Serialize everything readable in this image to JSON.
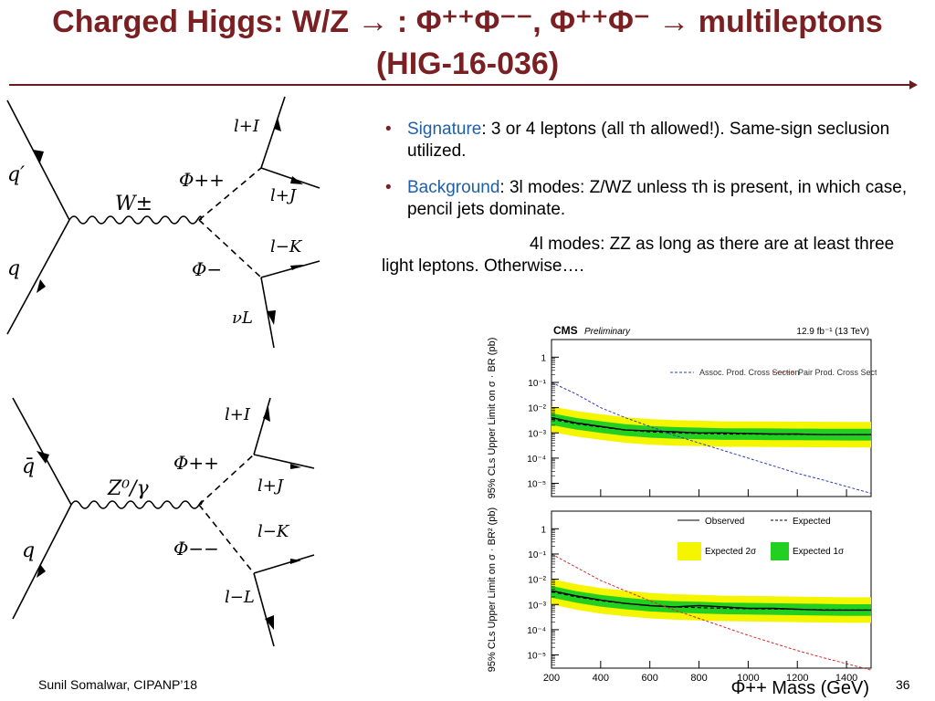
{
  "slide": {
    "title_line1": "Charged Higgs: W/Z → : Φ⁺⁺Φ⁻⁻, Φ⁺⁺Φ⁻ → multileptons",
    "title_line2": "(HIG-16-036)",
    "footer_author": "Sunil Somalwar, CIPANP’18",
    "page_number": "36"
  },
  "diagram1": {
    "in_top": "q′",
    "in_bot": "q",
    "boson": "W±",
    "scalar_top": "Φ++",
    "scalar_bot": "Φ−",
    "out1": "l+I",
    "out2": "l+J",
    "out3": "l−K",
    "out4": "νL"
  },
  "diagram2": {
    "in_top": "q̄",
    "in_bot": "q",
    "boson": "Z⁰/γ",
    "scalar_top": "Φ++",
    "scalar_bot": "Φ−−",
    "out1": "l+I",
    "out2": "l+J",
    "out3": "l−K",
    "out4": "l−L"
  },
  "bullets": {
    "signature_key": "Signature",
    "signature_text": ": 3 or 4 leptons (all τh allowed!). Same-sign seclusion utilized.",
    "background_key": "Background",
    "background_text": ": 3l modes: Z/WZ unless τh is present, in which case, pencil jets dominate.",
    "fourl_text": "4l modes: ZZ as long as there are at least three light leptons.  Otherwise…."
  },
  "colors": {
    "title": "#7a1f22",
    "key": "#1f5fa8",
    "band2": "#f5f500",
    "band1": "#22d022",
    "blue": "#2e3fb5",
    "red": "#d42a2a"
  },
  "chart_data": [
    {
      "type": "line",
      "title": "CMS Preliminary",
      "lumi": "12.9 fb⁻¹ (13 TeV)",
      "ylabel": "95% CLs Upper Limit on σ · BR (pb)",
      "xlabel": "Φ++ Mass (GeV)",
      "log_y": true,
      "xlim": [
        200,
        1500
      ],
      "ylim": [
        3e-06,
        5
      ],
      "yticks": [
        "1",
        "10⁻¹",
        "10⁻²",
        "10⁻³",
        "10⁻⁴",
        "10⁻⁵"
      ],
      "legend": [
        "Assoc. Prod. Cross Section",
        "Pair Prod. Cross Section"
      ],
      "x": [
        200,
        300,
        400,
        500,
        600,
        700,
        800,
        900,
        1000,
        1100,
        1200,
        1300,
        1400,
        1500
      ],
      "series": [
        {
          "name": "Assoc. Prod. Cross Section",
          "values": [
            0.1,
            0.035,
            0.01,
            0.004,
            0.0018,
            0.0008,
            0.0004,
            0.0002,
            0.0001,
            5e-05,
            2.5e-05,
            1.4e-05,
            7.5e-06,
            4e-06
          ]
        },
        {
          "name": "Observed",
          "values": [
            0.004,
            0.0025,
            0.0018,
            0.0013,
            0.0012,
            0.0011,
            0.001,
            0.001,
            0.00095,
            0.0009,
            0.0009,
            0.00085,
            0.00085,
            0.00085
          ]
        },
        {
          "name": "Expected",
          "values": [
            0.0035,
            0.0023,
            0.0017,
            0.0013,
            0.0011,
            0.001,
            0.00095,
            0.0009,
            0.0009,
            0.00088,
            0.00087,
            0.00086,
            0.00085,
            0.00085
          ]
        }
      ]
    },
    {
      "type": "line",
      "ylabel": "95% CLs Upper Limit on σ · BR² (pb)",
      "xlabel": "Φ++ Mass (GeV)",
      "log_y": true,
      "xlim": [
        200,
        1500
      ],
      "ylim": [
        3e-06,
        5
      ],
      "xticks": [
        "200",
        "400",
        "600",
        "800",
        "1000",
        "1200",
        "1400"
      ],
      "yticks": [
        "1",
        "10⁻¹",
        "10⁻²",
        "10⁻³",
        "10⁻⁴",
        "10⁻⁵"
      ],
      "legend": [
        "Observed",
        "Expected",
        "Expected 2σ",
        "Expected 1σ"
      ],
      "x": [
        200,
        300,
        400,
        500,
        600,
        700,
        800,
        900,
        1000,
        1100,
        1200,
        1300,
        1400,
        1500
      ],
      "series": [
        {
          "name": "Pair Prod. Cross Section",
          "values": [
            0.1,
            0.03,
            0.009,
            0.0035,
            0.0014,
            0.0006,
            0.00028,
            0.00013,
            6e-05,
            3e-05,
            1.5e-05,
            8e-06,
            4.5e-06,
            2.5e-06
          ]
        },
        {
          "name": "Observed",
          "values": [
            0.0035,
            0.0022,
            0.0015,
            0.0011,
            0.0009,
            0.0008,
            0.0009,
            0.0008,
            0.0007,
            0.0007,
            0.00065,
            0.0006,
            0.0006,
            0.0006
          ]
        },
        {
          "name": "Expected",
          "values": [
            0.0032,
            0.002,
            0.0014,
            0.0011,
            0.0009,
            0.0008,
            0.00075,
            0.0007,
            0.00068,
            0.00066,
            0.00064,
            0.00062,
            0.0006,
            0.0006
          ]
        }
      ]
    }
  ]
}
